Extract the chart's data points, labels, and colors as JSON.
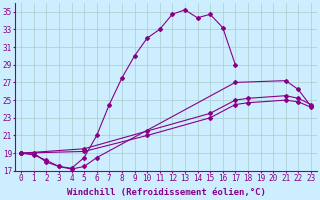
{
  "color": "#880088",
  "bg_color": "#cceeff",
  "grid_color": "#aacccc",
  "ylim": [
    17,
    36
  ],
  "xlim": [
    -0.5,
    23.5
  ],
  "yticks": [
    17,
    19,
    21,
    23,
    25,
    27,
    29,
    31,
    33,
    35
  ],
  "xtick_labels": [
    "0",
    "1",
    "2",
    "3",
    "4",
    "5",
    "6",
    "7",
    "8",
    "9",
    "10",
    "11",
    "12",
    "13",
    "14",
    "15",
    "16",
    "17",
    "18",
    "19",
    "20",
    "21",
    "22",
    "23"
  ],
  "xlabel": "Windchill (Refroidissement éolien,°C)",
  "xlabel_fontsize": 6.5,
  "tick_fontsize": 5.5,
  "line1_x": [
    0,
    1,
    2,
    3,
    4,
    5,
    6,
    7,
    8,
    9,
    10,
    11,
    12,
    13,
    14,
    15,
    16,
    17
  ],
  "line1_y": [
    19,
    19,
    18,
    17.5,
    17.3,
    18.5,
    21,
    24.5,
    27.5,
    30,
    32,
    33,
    34.7,
    35.2,
    34.3,
    34.7,
    33.2,
    29
  ],
  "line2_x": [
    0,
    1,
    2,
    3,
    4,
    5,
    6,
    17,
    21,
    22,
    23
  ],
  "line2_y": [
    19,
    18.8,
    18.2,
    17.5,
    17.2,
    17.5,
    18.5,
    27,
    27.2,
    26.2,
    24.3
  ],
  "line3_x": [
    0,
    5,
    10,
    15,
    17,
    18,
    21,
    22,
    23
  ],
  "line3_y": [
    19,
    19.5,
    21.5,
    23.5,
    25,
    25.2,
    25.5,
    25.2,
    24.5
  ],
  "line4_x": [
    0,
    5,
    10,
    15,
    17,
    18,
    21,
    22,
    23
  ],
  "line4_y": [
    19,
    19.2,
    21,
    23,
    24.5,
    24.7,
    25,
    24.8,
    24.2
  ]
}
